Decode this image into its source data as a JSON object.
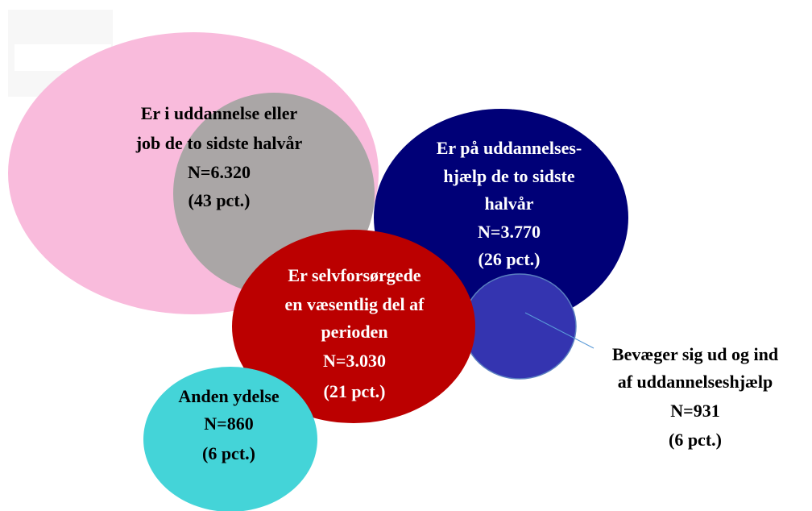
{
  "nodes": [
    {
      "lines": [
        "Er i uddannelse eller",
        "job de to sidste halvår",
        "N=6.320",
        "(43 pct.)"
      ]
    },
    {
      "lines": [
        "Er på uddannelses-",
        "hjælp de to sidste",
        "halvår",
        "N=3.770",
        "(26 pct.)"
      ]
    },
    {
      "lines": [
        "Er selvforsørgede",
        "en væsentlig del af",
        "perioden",
        "N=3.030",
        "(21 pct.)"
      ]
    },
    {
      "lines": [
        "Anden ydelse",
        "N=860",
        "(6 pct.)"
      ]
    },
    {
      "lines": [
        "Bevæger sig ud og ind",
        "af uddannelseshjælp",
        "N=931",
        "(6 pct.)"
      ]
    }
  ]
}
